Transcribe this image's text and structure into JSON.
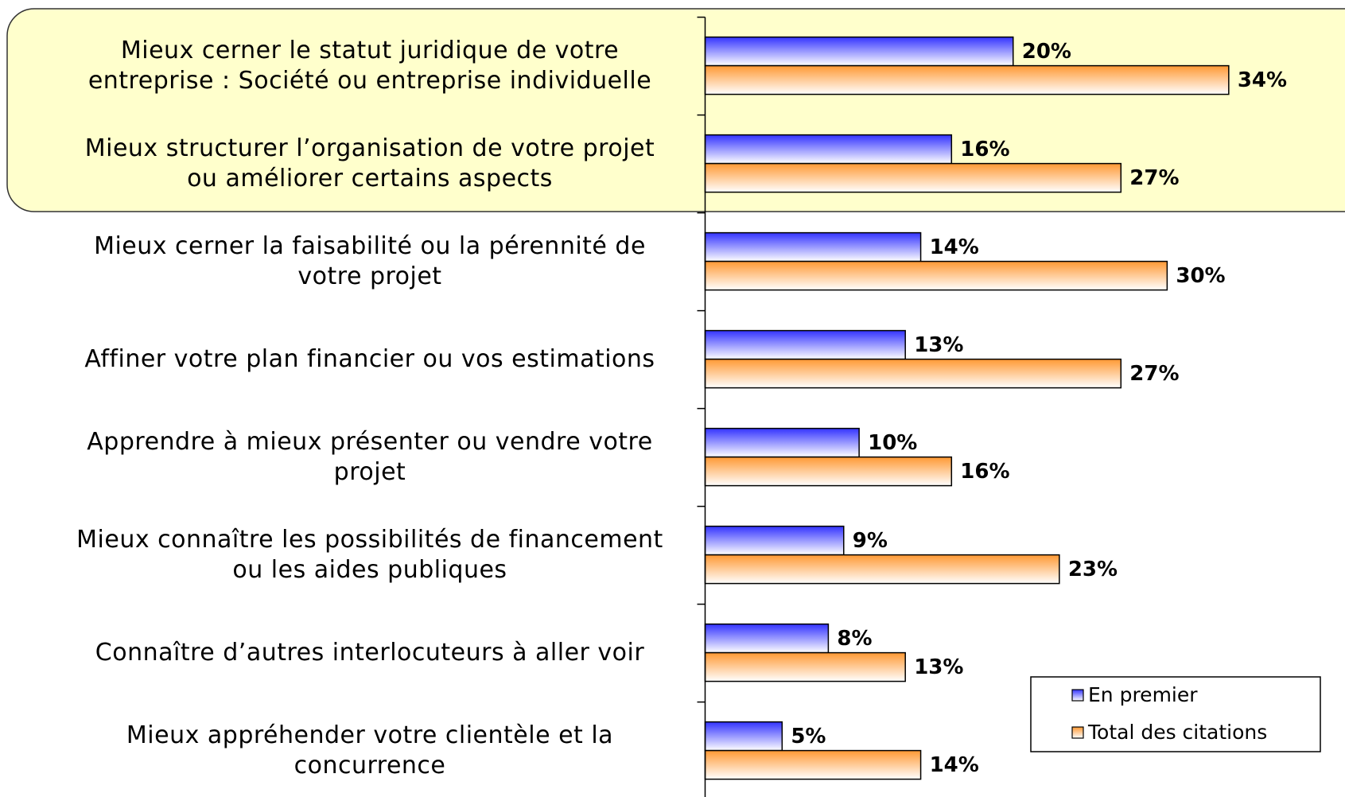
{
  "chart_data": {
    "type": "bar",
    "orientation": "horizontal",
    "categories": [
      "Mieux cerner le statut juridique de votre\nentreprise : Société ou entreprise individuelle",
      "Mieux structurer l’organisation de votre projet\nou améliorer certains aspects",
      "Mieux cerner la faisabilité ou la pérennité de\nvotre projet",
      "Affiner votre plan financier ou vos estimations",
      "Apprendre à mieux présenter ou vendre votre\nprojet",
      "Mieux connaître les possibilités de financement\nou les aides publiques",
      "Connaître d’autres interlocuteurs à aller voir",
      "Mieux appréhender votre clientèle et la\nconcurrence"
    ],
    "series": [
      {
        "name": "En premier",
        "color": "#3333ff",
        "values": [
          20,
          16,
          14,
          13,
          10,
          9,
          8,
          5
        ],
        "value_labels": [
          "20%",
          "16%",
          "14%",
          "13%",
          "10%",
          "9%",
          "8%",
          "5%"
        ]
      },
      {
        "name": "Total des citations",
        "color": "#ff9933",
        "values": [
          34,
          27,
          30,
          27,
          16,
          23,
          13,
          14
        ],
        "value_labels": [
          "34%",
          "27%",
          "30%",
          "27%",
          "16%",
          "23%",
          "13%",
          "14%"
        ]
      }
    ],
    "xlim": [
      0,
      40
    ],
    "legend": "lower right"
  }
}
